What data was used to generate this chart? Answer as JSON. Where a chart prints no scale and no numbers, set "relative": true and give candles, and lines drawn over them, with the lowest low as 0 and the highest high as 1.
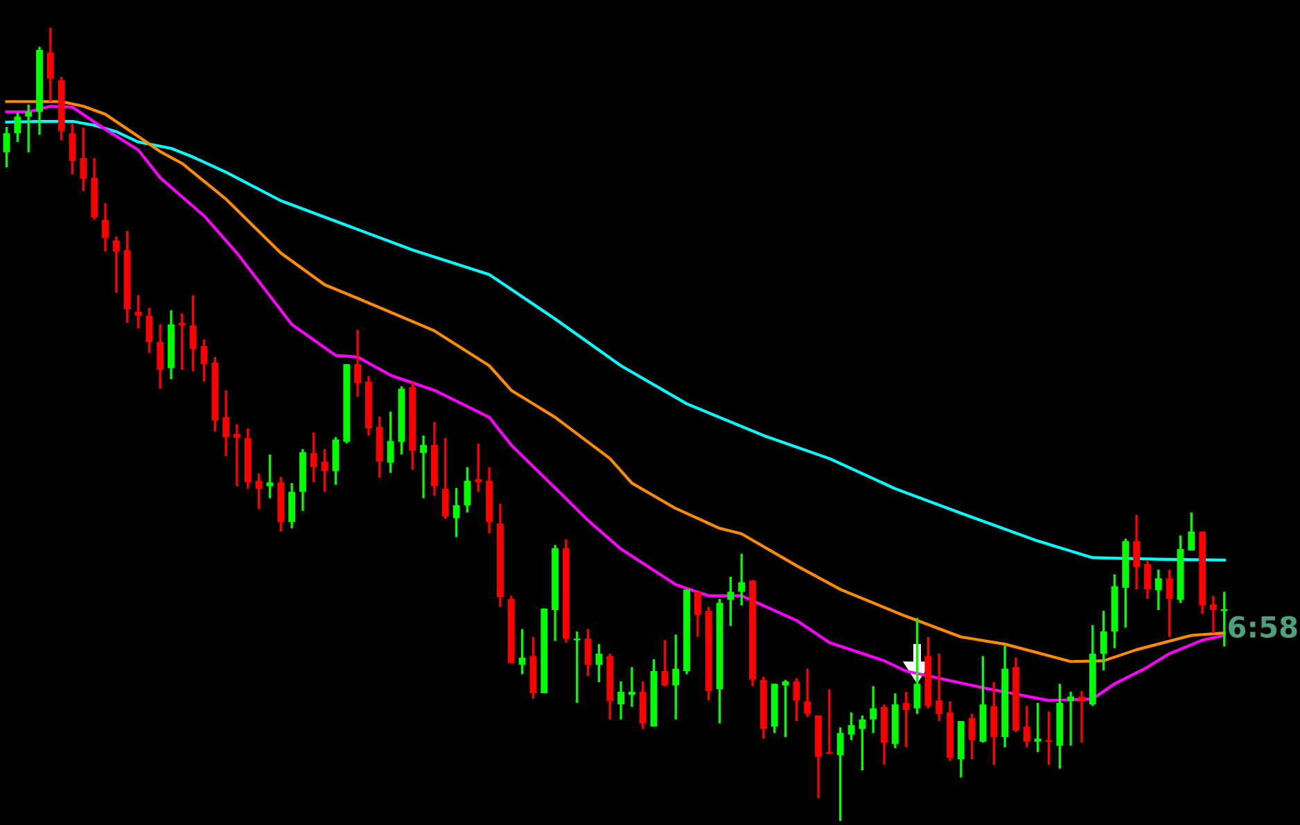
{
  "chart_data": {
    "type": "candlestick",
    "relative": true,
    "categories": [
      null,
      null,
      null,
      null,
      null,
      null,
      null,
      null,
      null,
      null,
      null,
      null,
      null,
      null,
      null,
      null,
      null,
      null,
      null,
      null,
      null,
      null,
      null,
      null,
      null,
      null,
      null,
      null,
      null,
      null,
      null,
      null,
      null,
      null,
      null,
      null,
      null,
      null,
      null,
      null,
      null,
      null,
      null,
      null,
      null,
      null,
      null,
      null,
      null,
      null,
      null,
      null,
      null,
      null,
      null,
      null,
      null,
      null,
      null,
      null,
      null,
      null,
      null,
      null,
      null,
      null,
      null,
      null,
      null,
      null,
      null,
      null,
      null,
      null,
      null,
      null,
      null,
      null,
      null,
      null,
      null,
      null,
      null,
      null,
      null,
      null,
      null,
      null,
      null,
      null,
      null,
      null,
      null,
      null,
      null,
      null,
      null,
      null,
      null,
      null,
      null,
      null,
      null,
      null,
      null,
      null,
      null,
      null,
      null,
      null,
      null,
      null
    ],
    "ohlc": [
      [
        0.843,
        0.875,
        0.824,
        0.867
      ],
      [
        0.867,
        0.893,
        0.856,
        0.888
      ],
      [
        0.888,
        0.903,
        0.843,
        0.894
      ],
      [
        0.894,
        0.976,
        0.865,
        0.972
      ],
      [
        0.969,
        1.0,
        0.907,
        0.936
      ],
      [
        0.934,
        0.938,
        0.858,
        0.87
      ],
      [
        0.867,
        0.879,
        0.815,
        0.832
      ],
      [
        0.836,
        0.874,
        0.794,
        0.81
      ],
      [
        0.811,
        0.836,
        0.758,
        0.761
      ],
      [
        0.758,
        0.779,
        0.718,
        0.735
      ],
      [
        0.732,
        0.737,
        0.666,
        0.718
      ],
      [
        0.72,
        0.744,
        0.628,
        0.645
      ],
      [
        0.642,
        0.663,
        0.621,
        0.637
      ],
      [
        0.637,
        0.647,
        0.59,
        0.604
      ],
      [
        0.604,
        0.626,
        0.545,
        0.569
      ],
      [
        0.571,
        0.644,
        0.557,
        0.626
      ],
      [
        0.628,
        0.64,
        0.569,
        0.625
      ],
      [
        0.625,
        0.663,
        0.567,
        0.595
      ],
      [
        0.599,
        0.607,
        0.554,
        0.576
      ],
      [
        0.578,
        0.585,
        0.491,
        0.505
      ],
      [
        0.509,
        0.543,
        0.46,
        0.484
      ],
      [
        0.488,
        0.5,
        0.422,
        0.483
      ],
      [
        0.483,
        0.495,
        0.419,
        0.427
      ],
      [
        0.429,
        0.438,
        0.393,
        0.419
      ],
      [
        0.422,
        0.462,
        0.407,
        0.427
      ],
      [
        0.427,
        0.434,
        0.365,
        0.377
      ],
      [
        0.377,
        0.426,
        0.369,
        0.415
      ],
      [
        0.415,
        0.469,
        0.391,
        0.465
      ],
      [
        0.464,
        0.49,
        0.427,
        0.446
      ],
      [
        0.453,
        0.469,
        0.415,
        0.441
      ],
      [
        0.441,
        0.484,
        0.424,
        0.481
      ],
      [
        0.478,
        0.576,
        0.476,
        0.576
      ],
      [
        0.576,
        0.619,
        0.535,
        0.552
      ],
      [
        0.554,
        0.561,
        0.486,
        0.495
      ],
      [
        0.497,
        0.51,
        0.433,
        0.453
      ],
      [
        0.452,
        0.516,
        0.439,
        0.479
      ],
      [
        0.478,
        0.548,
        0.462,
        0.545
      ],
      [
        0.547,
        0.555,
        0.443,
        0.467
      ],
      [
        0.464,
        0.486,
        0.407,
        0.474
      ],
      [
        0.474,
        0.503,
        0.41,
        0.422
      ],
      [
        0.419,
        0.483,
        0.381,
        0.384
      ],
      [
        0.382,
        0.42,
        0.358,
        0.398
      ],
      [
        0.398,
        0.446,
        0.389,
        0.429
      ],
      [
        0.431,
        0.476,
        0.415,
        0.427
      ],
      [
        0.429,
        0.446,
        0.363,
        0.377
      ],
      [
        0.375,
        0.4,
        0.27,
        0.282
      ],
      [
        0.28,
        0.284,
        0.199,
        0.199
      ],
      [
        0.197,
        0.242,
        0.185,
        0.206
      ],
      [
        0.208,
        0.232,
        0.154,
        0.161
      ],
      [
        0.161,
        0.268,
        0.161,
        0.268
      ],
      [
        0.266,
        0.348,
        0.227,
        0.344
      ],
      [
        0.344,
        0.355,
        0.225,
        0.23
      ],
      [
        0.228,
        0.239,
        0.149,
        0.23
      ],
      [
        0.23,
        0.242,
        0.183,
        0.197
      ],
      [
        0.197,
        0.223,
        0.175,
        0.211
      ],
      [
        0.208,
        0.211,
        0.128,
        0.151
      ],
      [
        0.147,
        0.176,
        0.128,
        0.163
      ],
      [
        0.159,
        0.194,
        0.144,
        0.163
      ],
      [
        0.163,
        0.176,
        0.116,
        0.123
      ],
      [
        0.119,
        0.204,
        0.119,
        0.189
      ],
      [
        0.189,
        0.228,
        0.17,
        0.171
      ],
      [
        0.171,
        0.235,
        0.128,
        0.192
      ],
      [
        0.189,
        0.292,
        0.185,
        0.292
      ],
      [
        0.289,
        0.289,
        0.232,
        0.26
      ],
      [
        0.265,
        0.27,
        0.152,
        0.164
      ],
      [
        0.166,
        0.28,
        0.123,
        0.275
      ],
      [
        0.279,
        0.308,
        0.246,
        0.289
      ],
      [
        0.289,
        0.337,
        0.272,
        0.301
      ],
      [
        0.303,
        0.304,
        0.17,
        0.178
      ],
      [
        0.178,
        0.182,
        0.104,
        0.116
      ],
      [
        0.119,
        0.173,
        0.111,
        0.173
      ],
      [
        0.171,
        0.178,
        0.106,
        0.176
      ],
      [
        0.176,
        0.18,
        0.126,
        0.152
      ],
      [
        0.151,
        0.192,
        0.131,
        0.135
      ],
      [
        0.133,
        0.133,
        0.029,
        0.081
      ],
      [
        0.087,
        0.166,
        0.085,
        0.085
      ],
      [
        0.083,
        0.118,
        0.0,
        0.111
      ],
      [
        0.109,
        0.137,
        0.102,
        0.121
      ],
      [
        0.116,
        0.133,
        0.064,
        0.128
      ],
      [
        0.128,
        0.17,
        0.111,
        0.142
      ],
      [
        0.144,
        0.147,
        0.071,
        0.099
      ],
      [
        0.097,
        0.161,
        0.092,
        0.147
      ],
      [
        0.149,
        0.163,
        0.093,
        0.14
      ],
      [
        0.142,
        0.256,
        0.135,
        0.173
      ],
      [
        0.208,
        0.232,
        0.142,
        0.145
      ],
      [
        0.152,
        0.211,
        0.126,
        0.135
      ],
      [
        0.137,
        0.151,
        0.076,
        0.08
      ],
      [
        0.078,
        0.126,
        0.055,
        0.126
      ],
      [
        0.13,
        0.135,
        0.078,
        0.102
      ],
      [
        0.1,
        0.208,
        0.099,
        0.147
      ],
      [
        0.145,
        0.175,
        0.071,
        0.106
      ],
      [
        0.106,
        0.221,
        0.093,
        0.192
      ],
      [
        0.194,
        0.206,
        0.112,
        0.114
      ],
      [
        0.119,
        0.145,
        0.093,
        0.1
      ],
      [
        0.1,
        0.149,
        0.087,
        0.104
      ],
      [
        0.102,
        0.138,
        0.071,
        0.1
      ],
      [
        0.095,
        0.173,
        0.066,
        0.149
      ],
      [
        0.151,
        0.163,
        0.095,
        0.157
      ],
      [
        0.157,
        0.164,
        0.099,
        0.151
      ],
      [
        0.147,
        0.247,
        0.145,
        0.211
      ],
      [
        0.211,
        0.265,
        0.19,
        0.239
      ],
      [
        0.239,
        0.311,
        0.218,
        0.296
      ],
      [
        0.294,
        0.356,
        0.244,
        0.353
      ],
      [
        0.353,
        0.386,
        0.292,
        0.32
      ],
      [
        0.324,
        0.329,
        0.28,
        0.292
      ],
      [
        0.291,
        0.317,
        0.266,
        0.306
      ],
      [
        0.306,
        0.317,
        0.232,
        0.28
      ],
      [
        0.279,
        0.36,
        0.275,
        0.343
      ],
      [
        0.341,
        0.389,
        0.341,
        0.365
      ],
      [
        0.365,
        0.365,
        0.261,
        0.272
      ],
      [
        0.273,
        0.284,
        0.237,
        0.266
      ],
      [
        0.265,
        0.289,
        0.22,
        0.266
      ]
    ],
    "colors": [
      "#00ff00",
      "#00ff00",
      "#00ff00",
      "#00ff00",
      "#ff0000",
      "#ff0000",
      "#ff0000",
      "#ff0000",
      "#ff0000",
      "#ff0000",
      "#ff0000",
      "#ff0000",
      "#ff0000",
      "#ff0000",
      "#ff0000",
      "#00ff00",
      "#ff0000",
      "#ff0000",
      "#ff0000",
      "#ff0000",
      "#ff0000",
      "#ff0000",
      "#ff0000",
      "#ff0000",
      "#00ff00",
      "#ff0000",
      "#00ff00",
      "#00ff00",
      "#ff0000",
      "#ff0000",
      "#00ff00",
      "#00ff00",
      "#ff0000",
      "#ff0000",
      "#ff0000",
      "#00ff00",
      "#00ff00",
      "#ff0000",
      "#00ff00",
      "#ff0000",
      "#ff0000",
      "#00ff00",
      "#00ff00",
      "#ff0000",
      "#ff0000",
      "#ff0000",
      "#ff0000",
      "#00ff00",
      "#ff0000",
      "#00ff00",
      "#00ff00",
      "#ff0000",
      "#00ff00",
      "#ff0000",
      "#00ff00",
      "#ff0000",
      "#00ff00",
      "#00ff00",
      "#ff0000",
      "#00ff00",
      "#ff0000",
      "#00ff00",
      "#00ff00",
      "#ff0000",
      "#ff0000",
      "#00ff00",
      "#00ff00",
      "#00ff00",
      "#ff0000",
      "#ff0000",
      "#00ff00",
      "#00ff00",
      "#ff0000",
      "#ff0000",
      "#ff0000",
      "#ff0000",
      "#00ff00",
      "#00ff00",
      "#00ff00",
      "#00ff00",
      "#ff0000",
      "#00ff00",
      "#ff0000",
      "#00ff00",
      "#ff0000",
      "#ff0000",
      "#ff0000",
      "#00ff00",
      "#ff0000",
      "#00ff00",
      "#ff0000",
      "#00ff00",
      "#ff0000",
      "#ff0000",
      "#00ff00",
      "#ff0000",
      "#00ff00",
      "#00ff00",
      "#ff0000",
      "#00ff00",
      "#00ff00",
      "#00ff00",
      "#00ff00",
      "#ff0000",
      "#ff0000",
      "#00ff00",
      "#ff0000",
      "#00ff00",
      "#00ff00",
      "#ff0000",
      "#ff0000",
      "#00ff00"
    ],
    "series": [
      {
        "type": "line",
        "color": "#00ffff",
        "values": [
          0.881,
          null,
          null,
          0.882,
          null,
          null,
          0.882,
          null,
          0.877,
          null,
          0.869,
          null,
          0.856,
          null,
          null,
          0.848,
          null,
          0.837,
          null,
          null,
          0.818,
          null,
          null,
          null,
          null,
          0.782,
          null,
          null,
          null,
          null,
          null,
          0.751,
          null,
          null,
          null,
          null,
          null,
          0.72,
          null,
          null,
          null,
          null,
          null,
          null,
          0.689,
          null,
          null,
          null,
          null,
          null,
          0.633,
          null,
          null,
          null,
          null,
          null,
          0.574,
          null,
          null,
          null,
          null,
          null,
          0.526,
          null,
          null,
          null,
          null,
          null,
          null,
          0.486,
          null,
          null,
          null,
          null,
          null,
          0.457,
          null,
          null,
          null,
          null,
          null,
          0.419,
          null,
          null,
          null,
          null,
          null,
          0.388,
          null,
          null,
          null,
          null,
          null,
          null,
          0.353,
          null,
          null,
          null,
          null,
          0.332,
          null,
          null,
          null,
          null,
          null,
          0.33,
          null,
          null,
          null,
          null,
          null,
          0.329
        ]
      },
      {
        "type": "line",
        "color": "#ff8c00",
        "values": [
          0.907,
          null,
          null,
          null,
          null,
          0.907,
          null,
          0.901,
          null,
          0.891,
          null,
          null,
          0.863,
          null,
          0.844,
          null,
          0.829,
          null,
          null,
          null,
          0.784,
          null,
          null,
          null,
          null,
          0.716,
          null,
          null,
          null,
          0.676,
          null,
          null,
          0.659,
          null,
          null,
          null,
          null,
          null,
          null,
          0.618,
          null,
          null,
          null,
          null,
          0.574,
          null,
          0.543,
          null,
          null,
          null,
          0.509,
          null,
          null,
          null,
          null,
          0.457,
          null,
          0.426,
          null,
          null,
          null,
          0.394,
          null,
          null,
          null,
          0.369,
          null,
          0.362,
          null,
          null,
          null,
          null,
          0.322,
          null,
          null,
          null,
          0.292,
          null,
          null,
          null,
          null,
          null,
          0.258,
          null,
          null,
          null,
          null,
          0.232,
          null,
          null,
          null,
          0.223,
          null,
          null,
          null,
          null,
          null,
          0.201,
          null,
          null,
          0.202,
          null,
          null,
          0.216,
          null,
          null,
          null,
          null,
          0.234,
          null,
          null,
          0.237
        ]
      },
      {
        "type": "line",
        "color": "#ff00ff",
        "values": [
          0.894,
          null,
          0.894,
          null,
          0.901,
          null,
          0.9,
          null,
          null,
          0.872,
          null,
          null,
          0.846,
          null,
          0.811,
          null,
          null,
          null,
          0.763,
          null,
          null,
          0.716,
          null,
          null,
          null,
          null,
          0.626,
          null,
          null,
          null,
          0.587,
          null,
          0.585,
          null,
          null,
          0.562,
          null,
          null,
          null,
          0.543,
          null,
          null,
          null,
          null,
          0.509,
          null,
          0.474,
          null,
          null,
          null,
          0.42,
          null,
          null,
          0.379,
          null,
          null,
          0.343,
          null,
          null,
          null,
          null,
          0.298,
          null,
          null,
          0.284,
          null,
          null,
          0.284,
          null,
          null,
          null,
          null,
          0.253,
          null,
          null,
          0.225,
          null,
          null,
          null,
          null,
          0.202,
          null,
          0.189,
          null,
          null,
          null,
          null,
          null,
          null,
          0.168,
          null,
          null,
          null,
          null,
          null,
          0.152,
          null,
          null,
          null,
          0.154,
          null,
          0.173,
          null,
          null,
          0.194,
          null,
          0.211,
          null,
          null,
          0.228,
          null,
          0.234
        ]
      }
    ],
    "annotations": [
      "6:58"
    ]
  }
}
